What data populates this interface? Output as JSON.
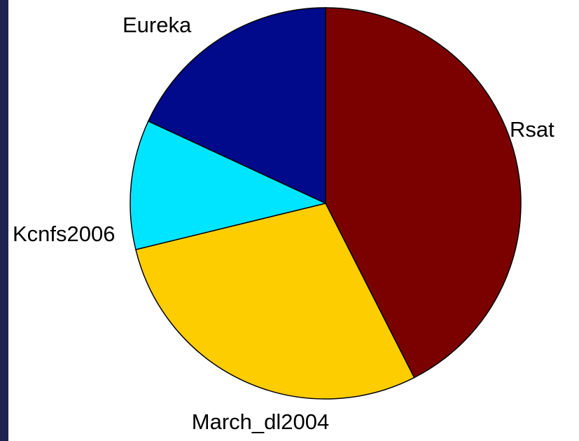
{
  "chart_data": {
    "type": "pie",
    "title": "",
    "categories": [
      "Rsat",
      "March_dl2004",
      "Kcnfs2006",
      "Eureka"
    ],
    "values": [
      42.5,
      28.7,
      10.7,
      18.1
    ],
    "colors": [
      "#7b0000",
      "#fdcd00",
      "#00e5ff",
      "#000a8a"
    ],
    "start": "12 o'clock",
    "direction": "clockwise",
    "slice_outline": "#000000",
    "legend": "none",
    "grid": false
  },
  "page": {
    "background": "#ffffff",
    "frame_color": "#1f2350"
  }
}
